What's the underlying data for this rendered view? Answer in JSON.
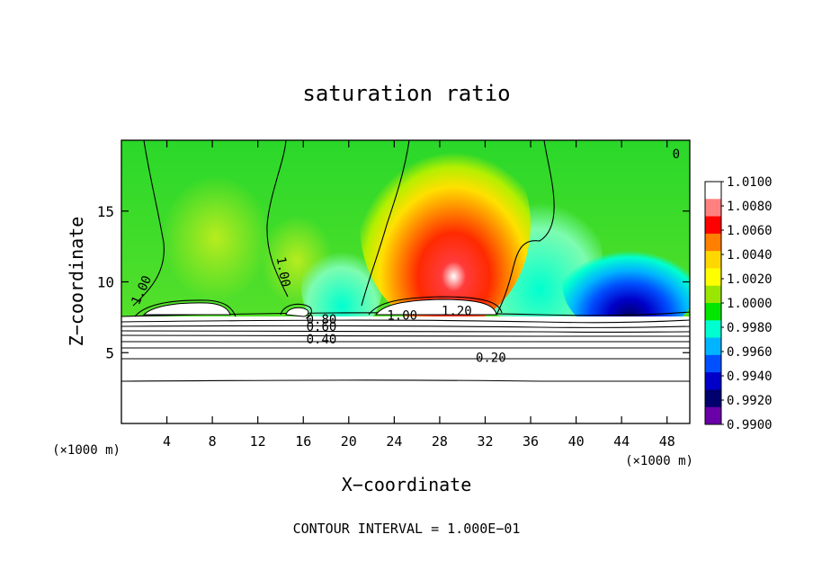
{
  "chart_data": {
    "type": "heatmap",
    "title": "saturation ratio",
    "xlabel": "X−coordinate",
    "ylabel": "Z−coordinate",
    "x_unit_left": "(×1000 m)",
    "x_unit_right": "(×1000 m)",
    "footer": "CONTOUR INTERVAL = 1.000E−01",
    "xlim": [
      0,
      50
    ],
    "ylim": [
      0,
      20
    ],
    "x_ticks": [
      4,
      8,
      12,
      16,
      20,
      24,
      28,
      32,
      36,
      40,
      44,
      48
    ],
    "y_ticks": [
      5,
      10,
      15
    ],
    "colorbar": {
      "levels": [
        "1.0100",
        "1.0080",
        "1.0060",
        "1.0040",
        "1.0020",
        "1.0000",
        "0.9980",
        "0.9960",
        "0.9940",
        "0.9920",
        "0.9900"
      ],
      "colors": [
        "#ffffff",
        "#ff8080",
        "#ff0000",
        "#ff7f00",
        "#ffd700",
        "#ffff00",
        "#9be600",
        "#00e600",
        "#00ffd0",
        "#00b4ff",
        "#0050ff",
        "#0000c8",
        "#00006e",
        "#6a00a8"
      ]
    },
    "contour_labels": [
      {
        "text": "1.00",
        "x": 1.8,
        "z": 9.4,
        "angle": -65
      },
      {
        "text": "1.00",
        "x": 14.2,
        "z": 10.7,
        "angle": 80
      },
      {
        "text": "0.80",
        "x": 17.6,
        "z": 7.3,
        "angle": 0
      },
      {
        "text": "0.60",
        "x": 17.6,
        "z": 6.8,
        "angle": 0
      },
      {
        "text": "0.40",
        "x": 17.6,
        "z": 5.9,
        "angle": 0
      },
      {
        "text": "1.00",
        "x": 24.7,
        "z": 7.6,
        "angle": 0
      },
      {
        "text": "1.20",
        "x": 29.5,
        "z": 7.9,
        "angle": 0
      },
      {
        "text": "0.20",
        "x": 32.5,
        "z": 4.6,
        "angle": 0
      },
      {
        "text": "0",
        "x": 48.8,
        "z": 19.0,
        "angle": 0
      }
    ]
  }
}
